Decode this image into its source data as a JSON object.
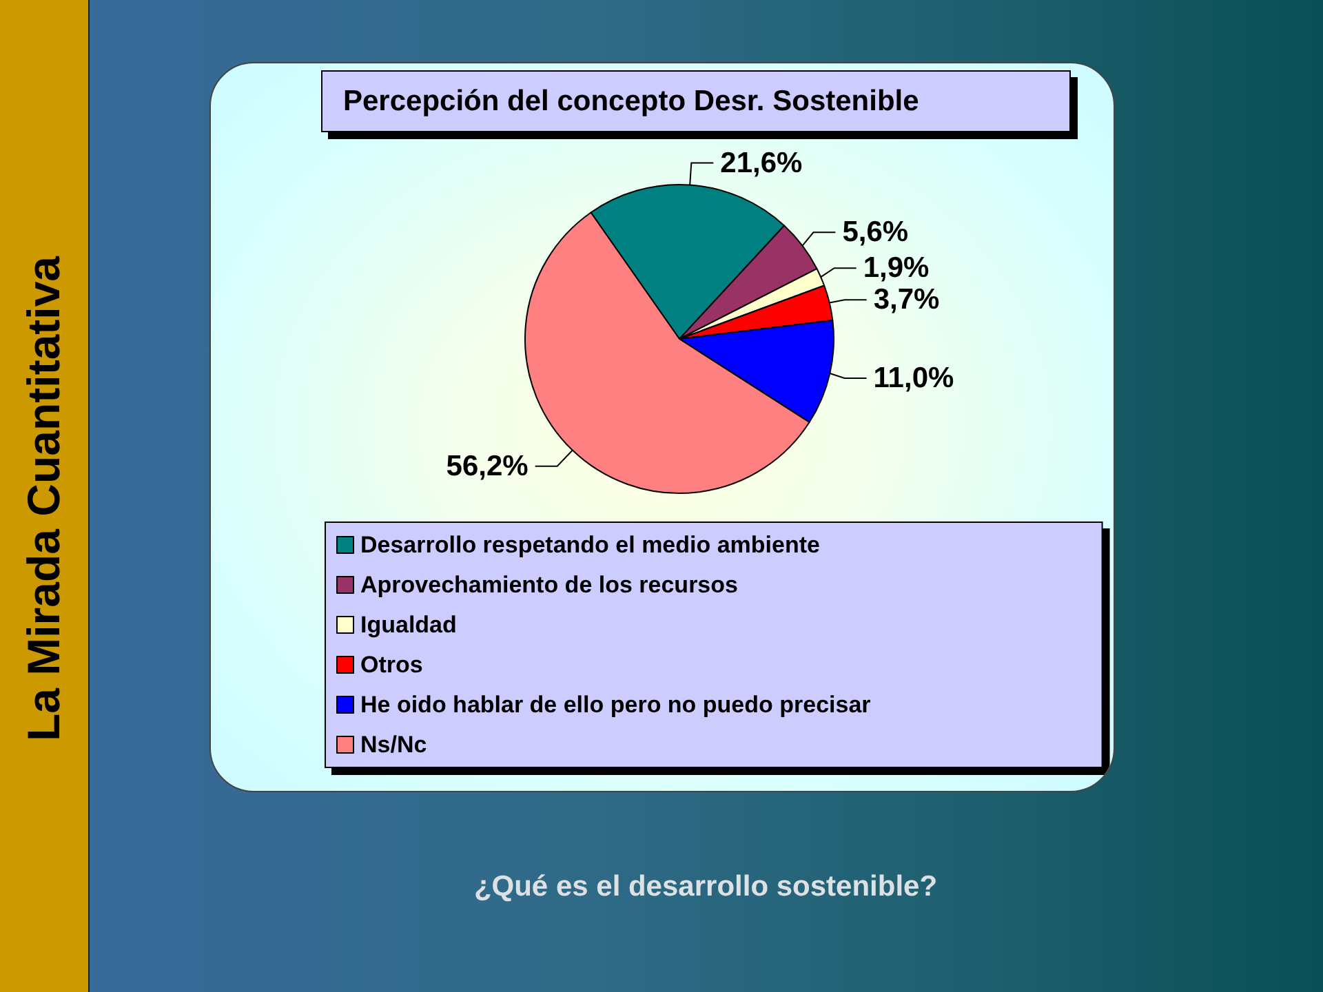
{
  "chart_data": {
    "type": "pie",
    "title": "Percepción del concepto Desr. Sostenible",
    "categories": [
      "Desarrollo respetando el medio ambiente",
      "Aprovechamiento de los recursos",
      "Igualdad",
      "Otros",
      "He oido hablar de ello pero no puedo precisar",
      "Ns/Nc"
    ],
    "values": [
      21.6,
      5.6,
      1.9,
      3.7,
      11.0,
      56.2
    ],
    "colors": [
      "#008080",
      "#993366",
      "#ffffcc",
      "#ff0000",
      "#0000ff",
      "#ff8080"
    ],
    "value_labels": [
      "21,6%",
      "5,6%",
      "1,9%",
      "3,7%",
      "11,0%",
      "56,2%"
    ],
    "legend": "bottom",
    "annotations": [
      "¿Qué es el desarrollo sostenible?",
      "La Mirada Cuantitativa"
    ]
  }
}
